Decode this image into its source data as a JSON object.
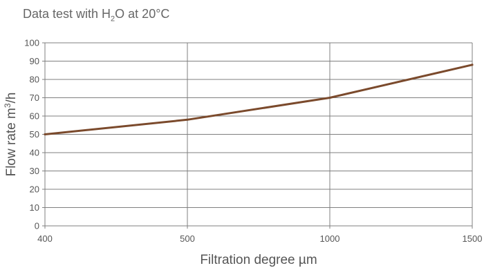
{
  "chart_data": {
    "type": "line",
    "title": {
      "prefix": "Data test with H",
      "subscript": "2",
      "suffix": "O at 20°C"
    },
    "xlabel": "Filtration degree µm",
    "ylabel": {
      "prefix": "Flow rate m",
      "superscript": "3",
      "suffix": "/h"
    },
    "x_categories": [
      "400",
      "500",
      "1000",
      "1500"
    ],
    "y_ticks": [
      0,
      10,
      20,
      30,
      40,
      50,
      60,
      70,
      80,
      90,
      100
    ],
    "ylim": [
      0,
      100
    ],
    "grid": true,
    "series": [
      {
        "points": [
          {
            "x": "400",
            "y": 50
          },
          {
            "x": "500",
            "y": 58
          },
          {
            "x": "1000",
            "y": 70
          },
          {
            "x": "1500",
            "y": 88
          }
        ]
      }
    ],
    "colors": {
      "line": "#7b4a2c",
      "grid": "#7f7f7f",
      "text": "#555555"
    }
  }
}
